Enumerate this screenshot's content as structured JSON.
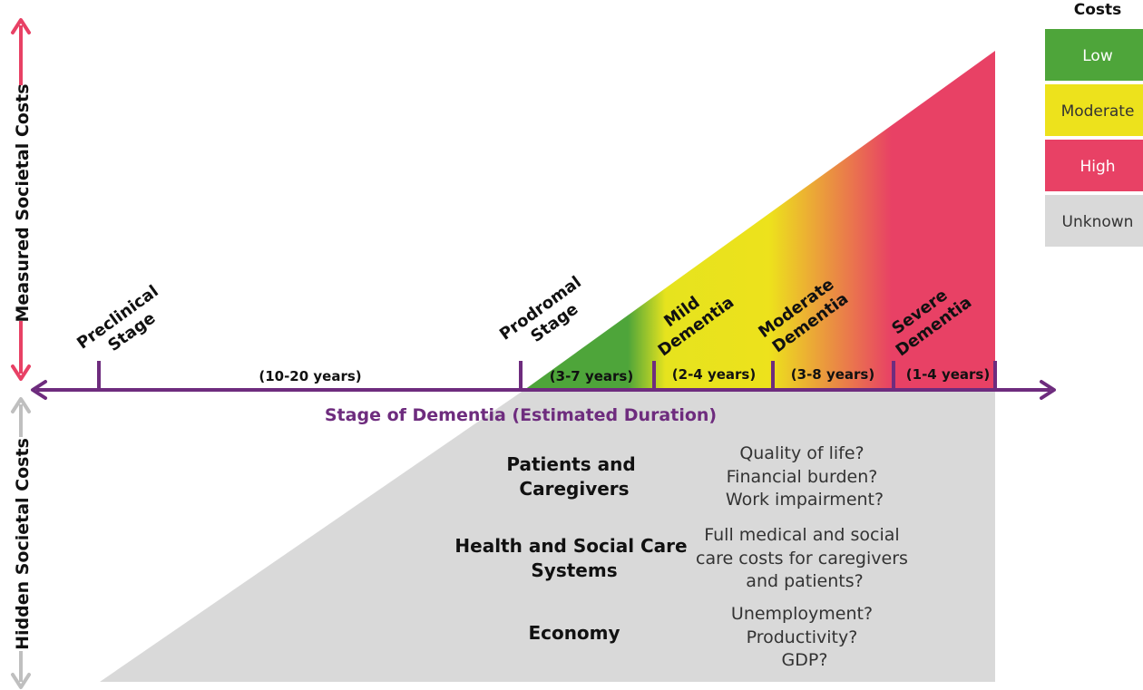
{
  "axes": {
    "x_title": "Stage of Dementia (Estimated Duration)",
    "y_upper_title": "Measured Societal Costs",
    "y_lower_title": "Hidden Societal Costs"
  },
  "stages": [
    {
      "line1": "Preclinical",
      "line2": "Stage"
    },
    {
      "line1": "Prodromal",
      "line2": "Stage"
    },
    {
      "line1": "Mild",
      "line2": "Dementia"
    },
    {
      "line1": "Moderate",
      "line2": "Dementia"
    },
    {
      "line1": "Severe",
      "line2": "Dementia"
    }
  ],
  "durations": [
    "(10-20 years)",
    "(3-7 years)",
    "(2-4 years)",
    "(3-8 years)",
    "(1-4 years)"
  ],
  "hidden_costs": [
    {
      "heading": [
        "Patients and",
        "Caregivers"
      ],
      "items": [
        "Quality of life?",
        "Financial burden?",
        "Work impairment?"
      ]
    },
    {
      "heading": [
        "Health and Social Care",
        "Systems"
      ],
      "items": [
        "Full medical and social",
        "care costs for caregivers",
        "and patients?"
      ]
    },
    {
      "heading": [
        "Economy"
      ],
      "items": [
        "Unemployment?",
        "Productivity?",
        "GDP?"
      ]
    }
  ],
  "legend": {
    "title": "Costs",
    "items": [
      {
        "label": "Low",
        "color": "#4ea53a",
        "text_color": "#ffffff"
      },
      {
        "label": "Moderate",
        "color": "#ede21c",
        "text_color": "#333333"
      },
      {
        "label": "High",
        "color": "#e84165",
        "text_color": "#ffffff"
      },
      {
        "label": "Unknown",
        "color": "#d9d9d9",
        "text_color": "#333333"
      }
    ]
  },
  "colors": {
    "axis_purple": "#6e2c7e",
    "measured_arrow": "#e84165",
    "hidden_arrow": "#bfbfbf",
    "hidden_area": "#d9d9d9"
  }
}
